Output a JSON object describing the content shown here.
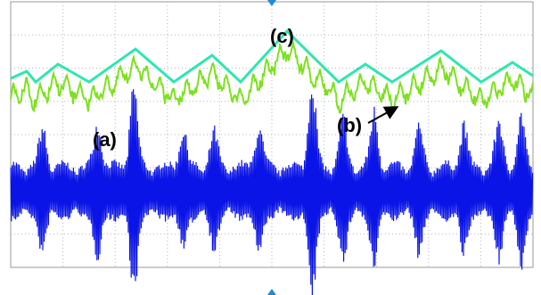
{
  "annotations": {
    "a": "(a)",
    "b": "(b)",
    "c": "(c)"
  }
}
